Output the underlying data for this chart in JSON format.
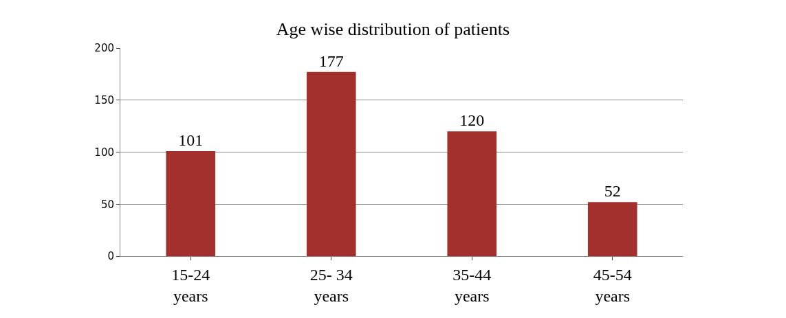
{
  "chart_data": {
    "type": "bar",
    "title": "Age wise distribution of patients",
    "categories": [
      "15-24 years",
      "25- 34 years",
      "35-44 years",
      "45-54 years"
    ],
    "values": [
      101,
      177,
      120,
      52
    ],
    "color": "#a3302c",
    "ylim": [
      0,
      200
    ],
    "yticks": [
      0,
      50,
      100,
      150,
      200
    ],
    "grid": "y",
    "data_labels": true
  }
}
